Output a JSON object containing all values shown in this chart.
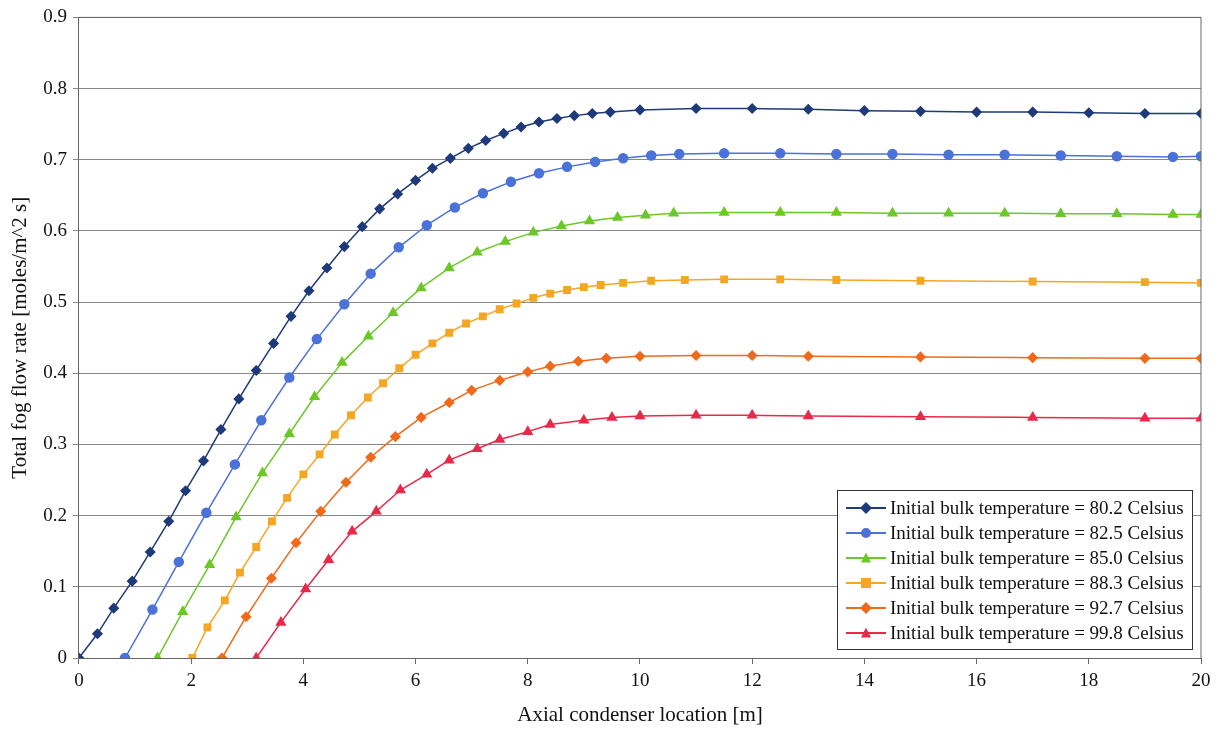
{
  "chart_data": {
    "type": "line",
    "xlabel": "Axial condenser location [m]",
    "ylabel": "Total fog flow rate [moles/m^2 s]",
    "xlim": [
      0,
      20
    ],
    "xticks": [
      0,
      2,
      4,
      6,
      8,
      10,
      12,
      14,
      16,
      18,
      20
    ],
    "ylim": [
      0,
      0.9
    ],
    "yticks": [
      0,
      0.1,
      0.2,
      0.3,
      0.4,
      0.5,
      0.6,
      0.7,
      0.8,
      0.9
    ],
    "grid": "y",
    "legend": "bottom right",
    "line_style": "solid",
    "series": [
      {
        "name": "Initial bulk temperature = 80.2 Celsius",
        "color": "#1f3a7a",
        "marker": "diamond",
        "x": [
          0,
          0.33,
          0.62,
          0.95,
          1.27,
          1.6,
          1.9,
          2.22,
          2.53,
          2.85,
          3.16,
          3.47,
          3.78,
          4.1,
          4.42,
          4.73,
          5.05,
          5.36,
          5.68,
          6.0,
          6.3,
          6.62,
          6.94,
          7.25,
          7.57,
          7.88,
          8.2,
          8.52,
          8.83,
          9.15,
          9.47,
          10,
          11,
          12,
          13,
          14,
          15,
          16,
          17,
          18,
          19,
          20
        ],
        "values": [
          0,
          0.034,
          0.07,
          0.108,
          0.149,
          0.192,
          0.235,
          0.277,
          0.321,
          0.364,
          0.404,
          0.442,
          0.48,
          0.516,
          0.548,
          0.578,
          0.606,
          0.631,
          0.652,
          0.671,
          0.688,
          0.702,
          0.716,
          0.727,
          0.737,
          0.746,
          0.753,
          0.758,
          0.762,
          0.765,
          0.767,
          0.77,
          0.772,
          0.772,
          0.771,
          0.769,
          0.768,
          0.767,
          0.767,
          0.766,
          0.765,
          0.765
        ]
      },
      {
        "name": "Initial bulk temperature = 82.5 Celsius",
        "color": "#4a72d8",
        "marker": "circle",
        "x": [
          0.82,
          1.31,
          1.78,
          2.27,
          2.78,
          3.25,
          3.75,
          4.24,
          4.73,
          5.2,
          5.7,
          6.2,
          6.7,
          7.2,
          7.7,
          8.2,
          8.7,
          9.2,
          9.7,
          10.2,
          10.7,
          11.5,
          12.5,
          13.5,
          14.5,
          15.5,
          16.5,
          17.5,
          18.5,
          19.5,
          20
        ],
        "values": [
          0,
          0.068,
          0.135,
          0.204,
          0.272,
          0.334,
          0.394,
          0.448,
          0.497,
          0.54,
          0.577,
          0.608,
          0.633,
          0.653,
          0.669,
          0.681,
          0.69,
          0.697,
          0.702,
          0.706,
          0.708,
          0.709,
          0.709,
          0.708,
          0.708,
          0.707,
          0.707,
          0.706,
          0.705,
          0.704,
          0.705
        ]
      },
      {
        "name": "Initial bulk temperature = 85.0 Celsius",
        "color": "#6cc827",
        "marker": "triangle",
        "x": [
          1.4,
          1.85,
          2.33,
          2.8,
          3.27,
          3.75,
          4.2,
          4.69,
          5.16,
          5.6,
          6.1,
          6.6,
          7.1,
          7.6,
          8.1,
          8.6,
          9.1,
          9.6,
          10.1,
          10.6,
          11.5,
          12.5,
          13.5,
          14.5,
          15.5,
          16.5,
          17.5,
          18.5,
          19.5,
          20
        ],
        "values": [
          0,
          0.065,
          0.131,
          0.198,
          0.26,
          0.315,
          0.367,
          0.415,
          0.452,
          0.485,
          0.52,
          0.548,
          0.57,
          0.585,
          0.598,
          0.607,
          0.614,
          0.619,
          0.622,
          0.625,
          0.626,
          0.626,
          0.626,
          0.625,
          0.625,
          0.625,
          0.624,
          0.624,
          0.623,
          0.623
        ]
      },
      {
        "name": "Initial bulk temperature = 88.3 Celsius",
        "color": "#f5a623",
        "marker": "square",
        "x": [
          2.02,
          2.29,
          2.6,
          2.87,
          3.16,
          3.44,
          3.71,
          4.0,
          4.29,
          4.56,
          4.85,
          5.15,
          5.42,
          5.71,
          6.0,
          6.3,
          6.6,
          6.9,
          7.2,
          7.5,
          7.8,
          8.1,
          8.4,
          8.7,
          9.0,
          9.3,
          9.7,
          10.2,
          10.8,
          11.5,
          12.5,
          13.5,
          15,
          17,
          19,
          20
        ],
        "values": [
          0,
          0.043,
          0.081,
          0.12,
          0.156,
          0.192,
          0.225,
          0.258,
          0.286,
          0.314,
          0.341,
          0.366,
          0.386,
          0.407,
          0.426,
          0.442,
          0.457,
          0.47,
          0.48,
          0.49,
          0.498,
          0.506,
          0.512,
          0.517,
          0.521,
          0.524,
          0.527,
          0.53,
          0.531,
          0.532,
          0.532,
          0.531,
          0.53,
          0.529,
          0.528,
          0.527
        ]
      },
      {
        "name": "Initial bulk temperature = 92.7 Celsius",
        "color": "#f06a1c",
        "marker": "diamond",
        "x": [
          2.55,
          2.98,
          3.43,
          3.87,
          4.31,
          4.76,
          5.2,
          5.64,
          6.1,
          6.6,
          7.0,
          7.5,
          8.0,
          8.4,
          8.9,
          9.4,
          10,
          11,
          12,
          13,
          15,
          17,
          19,
          20
        ],
        "values": [
          0,
          0.058,
          0.112,
          0.162,
          0.206,
          0.247,
          0.282,
          0.311,
          0.338,
          0.359,
          0.376,
          0.39,
          0.402,
          0.41,
          0.417,
          0.421,
          0.424,
          0.425,
          0.425,
          0.424,
          0.423,
          0.422,
          0.421,
          0.421
        ]
      },
      {
        "name": "Initial bulk temperature = 99.8 Celsius",
        "color": "#e8294a",
        "marker": "triangle",
        "x": [
          3.16,
          3.6,
          4.04,
          4.45,
          4.87,
          5.3,
          5.73,
          6.2,
          6.6,
          7.1,
          7.5,
          8.0,
          8.4,
          9.0,
          9.5,
          10,
          11,
          12,
          13,
          15,
          17,
          19,
          20
        ],
        "values": [
          0,
          0.05,
          0.097,
          0.138,
          0.178,
          0.206,
          0.236,
          0.258,
          0.278,
          0.294,
          0.307,
          0.318,
          0.328,
          0.334,
          0.338,
          0.34,
          0.341,
          0.341,
          0.34,
          0.339,
          0.338,
          0.337,
          0.337
        ]
      }
    ]
  }
}
